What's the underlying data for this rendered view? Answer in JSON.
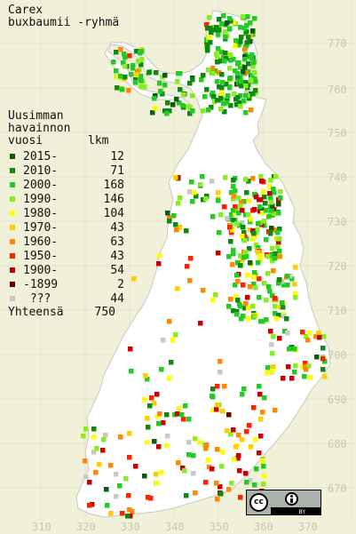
{
  "title": {
    "line1": "Carex",
    "line2": "buxbaumii -ryhmä"
  },
  "legend": {
    "heading1": "Uusimman",
    "heading2": "havainnon",
    "heading3": "vuosi",
    "count_header": "lkm",
    "rows": [
      {
        "label": "2015-",
        "count": "12",
        "color": "#0b5d0b"
      },
      {
        "label": "2010-",
        "count": "71",
        "color": "#0e8a0e"
      },
      {
        "label": "2000-",
        "count": "168",
        "color": "#22cc22"
      },
      {
        "label": "1990-",
        "count": "146",
        "color": "#88ee22"
      },
      {
        "label": "1980-",
        "count": "104",
        "color": "#ffff00"
      },
      {
        "label": "1970-",
        "count": "43",
        "color": "#ffcc00"
      },
      {
        "label": "1960-",
        "count": "63",
        "color": "#ff8800"
      },
      {
        "label": "1950-",
        "count": "43",
        "color": "#ff2200"
      },
      {
        "label": "1900-",
        "count": "54",
        "color": "#cc0000"
      },
      {
        "label": "-1899",
        "count": "2",
        "color": "#660000"
      },
      {
        "label": " ???",
        "count": "44",
        "color": "#c8c8c8"
      }
    ],
    "total_label": "Yhteensä",
    "total_count": "750"
  },
  "axes": {
    "y_labels": [
      "770",
      "760",
      "750",
      "740",
      "730",
      "720",
      "710",
      "700",
      "690",
      "680",
      "670"
    ],
    "x_labels": [
      "310",
      "320",
      "330",
      "340",
      "350",
      "360",
      "370"
    ]
  },
  "license": {
    "cc_text": "cc",
    "by_text": "BY"
  },
  "colors": {
    "background": "#f1f1d9",
    "land": "#ffffff",
    "border": "#c8c8c0",
    "grid": "#d8d8c4"
  }
}
